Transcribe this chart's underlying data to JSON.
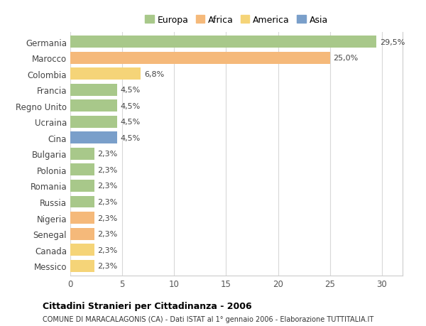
{
  "countries": [
    "Germania",
    "Marocco",
    "Colombia",
    "Francia",
    "Regno Unito",
    "Ucraina",
    "Cina",
    "Bulgaria",
    "Polonia",
    "Romania",
    "Russia",
    "Nigeria",
    "Senegal",
    "Canada",
    "Messico"
  ],
  "values": [
    29.5,
    25.0,
    6.8,
    4.5,
    4.5,
    4.5,
    4.5,
    2.3,
    2.3,
    2.3,
    2.3,
    2.3,
    2.3,
    2.3,
    2.3
  ],
  "labels": [
    "29,5%",
    "25,0%",
    "6,8%",
    "4,5%",
    "4,5%",
    "4,5%",
    "4,5%",
    "2,3%",
    "2,3%",
    "2,3%",
    "2,3%",
    "2,3%",
    "2,3%",
    "2,3%",
    "2,3%"
  ],
  "colors": [
    "#a8c88a",
    "#f5b97a",
    "#f5d478",
    "#a8c88a",
    "#a8c88a",
    "#a8c88a",
    "#7a9fca",
    "#a8c88a",
    "#a8c88a",
    "#a8c88a",
    "#a8c88a",
    "#f5b97a",
    "#f5b97a",
    "#f5d478",
    "#f5d478"
  ],
  "legend_labels": [
    "Europa",
    "Africa",
    "America",
    "Asia"
  ],
  "legend_colors": [
    "#a8c88a",
    "#f5b97a",
    "#f5d478",
    "#7a9fca"
  ],
  "title": "Cittadini Stranieri per Cittadinanza - 2006",
  "subtitle": "COMUNE DI MARACALAGONIS (CA) - Dati ISTAT al 1° gennaio 2006 - Elaborazione TUTTITALIA.IT",
  "xlim": [
    0,
    32
  ],
  "xticks": [
    0,
    5,
    10,
    15,
    20,
    25,
    30
  ],
  "background_color": "#ffffff",
  "grid_color": "#d8d8d8"
}
